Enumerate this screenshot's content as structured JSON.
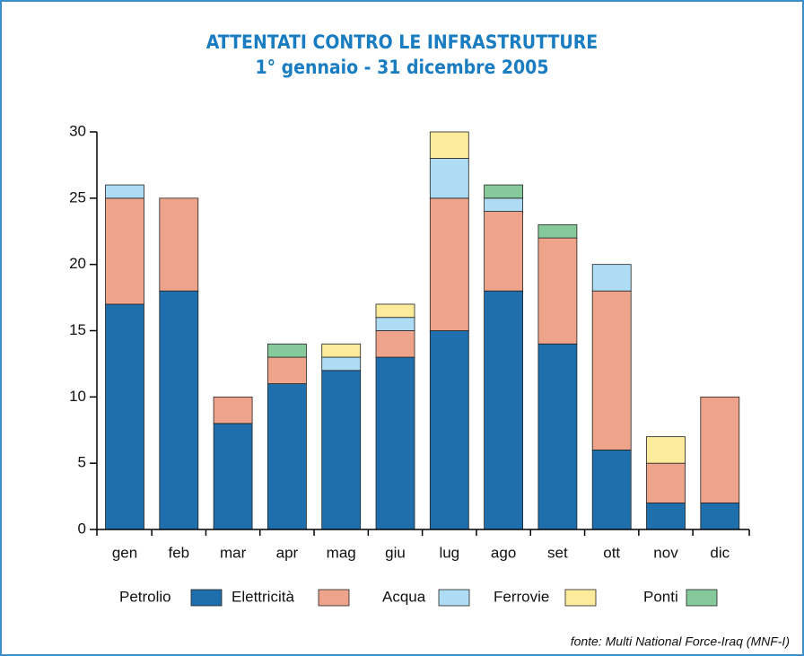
{
  "chart_data": {
    "type": "stacked_bar",
    "title": "ATTENTATI CONTRO LE INFRASTRUTTURE",
    "subtitle": "1° gennaio - 31 dicembre 2005",
    "source": "fonte: Multi National Force-Iraq (MNF-I)",
    "categories": [
      "gen",
      "feb",
      "mar",
      "apr",
      "mag",
      "giu",
      "lug",
      "ago",
      "set",
      "ott",
      "nov",
      "dic"
    ],
    "series": [
      {
        "name": "Petrolio",
        "color": "#1f6fad",
        "values": [
          17,
          18,
          8,
          11,
          12,
          13,
          15,
          18,
          14,
          6,
          2,
          2
        ]
      },
      {
        "name": "Elettricità",
        "color": "#eda48b",
        "values": [
          8,
          7,
          2,
          2,
          0,
          2,
          10,
          6,
          8,
          12,
          3,
          8
        ]
      },
      {
        "name": "Acqua",
        "color": "#aedcf4",
        "values": [
          1,
          0,
          0,
          0,
          1,
          1,
          3,
          1,
          0,
          2,
          0,
          0
        ]
      },
      {
        "name": "Ferrovie",
        "color": "#fbeb9b",
        "values": [
          0,
          0,
          0,
          0,
          1,
          1,
          2,
          0,
          0,
          0,
          2,
          0
        ]
      },
      {
        "name": "Ponti",
        "color": "#86c99a",
        "values": [
          0,
          0,
          0,
          1,
          0,
          0,
          0,
          1,
          1,
          0,
          0,
          0
        ]
      }
    ],
    "ylim": [
      0,
      30
    ],
    "yticks": [
      0,
      5,
      10,
      15,
      20,
      25,
      30
    ]
  }
}
